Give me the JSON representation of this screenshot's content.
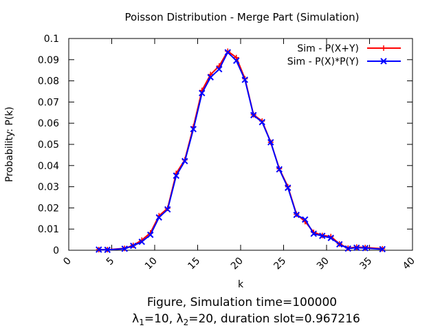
{
  "chart_data": {
    "type": "line",
    "title": "Poisson Distribution - Merge Part (Simulation)",
    "xlabel": "k",
    "ylabel": "Probability: P(k)",
    "xlim": [
      0,
      40
    ],
    "ylim": [
      0,
      0.1
    ],
    "x_ticks": [
      "0",
      "5",
      "10",
      "15",
      "20",
      "25",
      "30",
      "35",
      "40"
    ],
    "y_ticks": [
      "0",
      "0.01",
      "0.02",
      "0.03",
      "0.04",
      "0.05",
      "0.06",
      "0.07",
      "0.08",
      "0.09",
      "0.1"
    ],
    "grid": false,
    "legend_position": "top-right",
    "series": [
      {
        "name": "Sim - P(X+Y)",
        "color": "#ff0000",
        "marker": "plus",
        "x": [
          3.5,
          4.5,
          6.5,
          7.5,
          8.5,
          9.5,
          10.5,
          11.5,
          12.5,
          13.5,
          14.5,
          15.5,
          16.5,
          17.5,
          18.5,
          19.5,
          20.5,
          21.5,
          22.5,
          23.5,
          24.5,
          25.5,
          26.5,
          27.5,
          28.5,
          29.5,
          30.5,
          31.5,
          32.5,
          33.5,
          34.5,
          36.5
        ],
        "values": [
          0.0003,
          0.0003,
          0.0009,
          0.0023,
          0.0048,
          0.0082,
          0.0163,
          0.0198,
          0.0363,
          0.0427,
          0.0583,
          0.0755,
          0.083,
          0.087,
          0.094,
          0.091,
          0.081,
          0.064,
          0.061,
          0.051,
          0.0385,
          0.03,
          0.017,
          0.0135,
          0.0085,
          0.007,
          0.0065,
          0.003,
          0.001,
          0.0015,
          0.0013,
          0.0007
        ]
      },
      {
        "name": "Sim - P(X)*P(Y)",
        "color": "#0000ff",
        "marker": "cross",
        "x": [
          3.5,
          4.5,
          6.5,
          7.5,
          8.5,
          9.5,
          10.5,
          11.5,
          12.5,
          13.5,
          14.5,
          15.5,
          16.5,
          17.5,
          18.5,
          19.5,
          20.5,
          21.5,
          22.5,
          23.5,
          24.5,
          25.5,
          26.5,
          27.5,
          28.5,
          29.5,
          30.5,
          31.5,
          32.5,
          33.5,
          34.5,
          36.5
        ],
        "values": [
          0.0003,
          0.0002,
          0.0007,
          0.0021,
          0.004,
          0.0073,
          0.0155,
          0.0193,
          0.0352,
          0.0421,
          0.0572,
          0.0742,
          0.0817,
          0.0855,
          0.0935,
          0.0895,
          0.0805,
          0.0638,
          0.0605,
          0.051,
          0.0382,
          0.0295,
          0.0167,
          0.0145,
          0.0078,
          0.0068,
          0.0058,
          0.0028,
          0.0008,
          0.0012,
          0.001,
          0.0005
        ]
      }
    ]
  },
  "caption": {
    "line1": "Figure, Simulation time=100000",
    "lambda_symbol": "λ",
    "lambda1_sub": "1",
    "lambda1_value": "=10, ",
    "lambda2_sub": "2",
    "lambda2_value": "=20, duration slot=0.967216"
  }
}
